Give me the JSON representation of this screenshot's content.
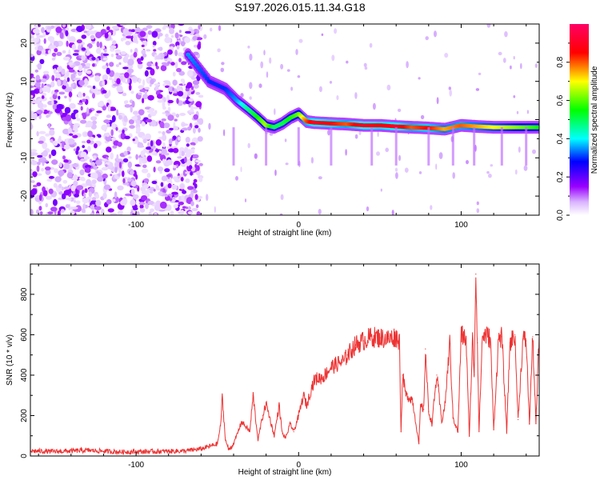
{
  "title": "S197.2026.015.11.34.G18",
  "chart_data": [
    {
      "type": "heatmap",
      "title": "S197.2026.015.11.34.G18",
      "xlabel": "Height of straight line (km)",
      "ylabel": "Frequency (Hz)",
      "xlim": [
        -165,
        148
      ],
      "ylim": [
        -25,
        25
      ],
      "xticks": [
        -100,
        0,
        100
      ],
      "xtick_labels": [
        "-100",
        "0",
        "100"
      ],
      "yticks": [
        -20,
        -10,
        0,
        10,
        20
      ],
      "ytick_labels": [
        "-20",
        "-10",
        "0",
        "10",
        "20"
      ],
      "grid": false,
      "colorbar": {
        "label": "Normalized spectral amplitude",
        "range": [
          0,
          1
        ],
        "ticks": [
          0.0,
          0.2,
          0.4,
          0.6,
          0.8
        ],
        "tick_labels": [
          "0.0",
          "0.2",
          "0.4",
          "0.6",
          "0.8"
        ],
        "colormap": [
          "#ffffff",
          "#9900ff",
          "#0000ff",
          "#00ffff",
          "#00ff00",
          "#ffff00",
          "#ff0000",
          "#ff0066"
        ]
      },
      "ridge": {
        "x": [
          -68,
          -55,
          -45,
          -38,
          -32,
          -25,
          -20,
          -15,
          -10,
          -5,
          0,
          5,
          10,
          20,
          30,
          40,
          50,
          60,
          70,
          80,
          90,
          100,
          110,
          120,
          130,
          140,
          148
        ],
        "freq": [
          17,
          10,
          8,
          5,
          3,
          0.5,
          -1.5,
          -2,
          -1,
          0.5,
          1.5,
          -0.5,
          -0.8,
          -1,
          -1.2,
          -1.5,
          -1.5,
          -1.8,
          -2,
          -2.2,
          -2.5,
          -1.5,
          -1.8,
          -2,
          -2,
          -2,
          -2
        ],
        "amplitude": [
          0.35,
          0.3,
          0.3,
          0.35,
          0.45,
          0.55,
          0.65,
          0.5,
          0.5,
          0.55,
          0.6,
          0.8,
          0.9,
          0.85,
          0.8,
          0.9,
          0.85,
          0.9,
          0.8,
          0.85,
          0.75,
          0.8,
          0.75,
          0.7,
          0.65,
          0.6,
          0.55
        ]
      }
    },
    {
      "type": "line",
      "xlabel": "Height of straight line (km)",
      "ylabel": "SNR (10 * v/v)",
      "xlim": [
        -165,
        148
      ],
      "ylim": [
        0,
        950
      ],
      "xticks": [
        -100,
        0,
        100
      ],
      "xtick_labels": [
        "-100",
        "0",
        "100"
      ],
      "yticks": [
        0,
        200,
        400,
        600,
        800
      ],
      "ytick_labels": [
        "0",
        "200",
        "400",
        "600",
        "800"
      ],
      "grid": false,
      "series": [
        {
          "name": "SNR",
          "color": "#ee3333",
          "x": [
            -165,
            -150,
            -130,
            -110,
            -90,
            -70,
            -60,
            -50,
            -48,
            -47,
            -45,
            -43,
            -40,
            -35,
            -30,
            -28,
            -25,
            -22,
            -20,
            -15,
            -12,
            -10,
            -8,
            -5,
            -3,
            0,
            3,
            5,
            8,
            10,
            15,
            18,
            20,
            25,
            28,
            30,
            35,
            40,
            45,
            50,
            55,
            60,
            62,
            63,
            64,
            66,
            70,
            74,
            75,
            77,
            78,
            80,
            82,
            85,
            88,
            90,
            93,
            95,
            98,
            100,
            103,
            105,
            107,
            108,
            109,
            110,
            111,
            113,
            115,
            118,
            120,
            123,
            125,
            128,
            130,
            133,
            135,
            138,
            140,
            142,
            144,
            146,
            148
          ],
          "y": [
            25,
            22,
            28,
            20,
            22,
            25,
            35,
            60,
            150,
            290,
            80,
            30,
            60,
            170,
            120,
            300,
            80,
            200,
            260,
            100,
            250,
            110,
            90,
            160,
            120,
            200,
            300,
            250,
            340,
            380,
            390,
            420,
            440,
            460,
            470,
            500,
            550,
            570,
            590,
            585,
            580,
            590,
            570,
            120,
            400,
            300,
            280,
            60,
            250,
            230,
            530,
            220,
            160,
            400,
            170,
            250,
            560,
            190,
            120,
            600,
            580,
            100,
            580,
            400,
            900,
            560,
            120,
            590,
            600,
            580,
            130,
            580,
            590,
            120,
            560,
            600,
            180,
            580,
            570,
            160,
            590,
            160,
            600
          ]
        }
      ]
    }
  ]
}
